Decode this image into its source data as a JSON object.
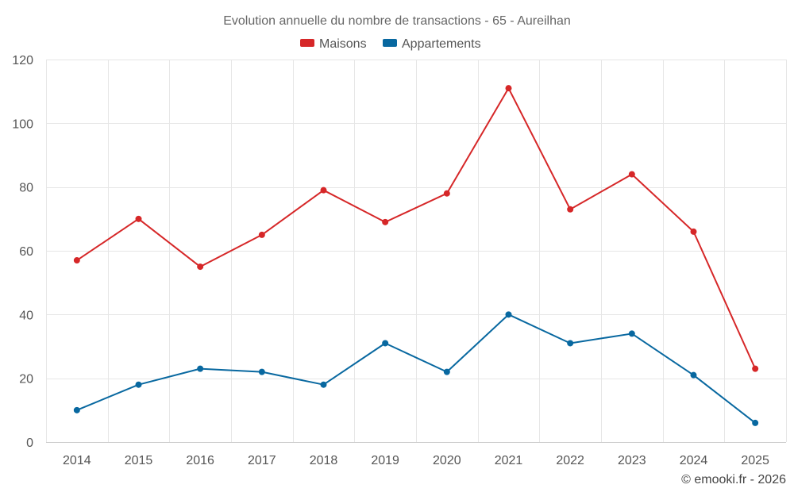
{
  "chart_data": {
    "type": "line",
    "title": "Evolution annuelle du nombre de transactions - 65 - Aureilhan",
    "categories": [
      "2014",
      "2015",
      "2016",
      "2017",
      "2018",
      "2019",
      "2020",
      "2021",
      "2022",
      "2023",
      "2024",
      "2025"
    ],
    "series": [
      {
        "name": "Maisons",
        "color": "#d62728",
        "values": [
          57,
          70,
          55,
          65,
          79,
          69,
          78,
          111,
          73,
          84,
          66,
          23
        ]
      },
      {
        "name": "Appartements",
        "color": "#0868a0",
        "values": [
          10,
          18,
          23,
          22,
          18,
          31,
          22,
          40,
          31,
          34,
          21,
          6
        ]
      }
    ],
    "ylim": [
      0,
      120
    ],
    "yticks": [
      0,
      20,
      40,
      60,
      80,
      100,
      120
    ],
    "ytick_labels": [
      "0",
      "20",
      "40",
      "60",
      "80",
      "100",
      "120"
    ],
    "grid": true,
    "legend_position": "top-center",
    "xlabel": "",
    "ylabel": ""
  },
  "credit": "© emooki.fr - 2026"
}
